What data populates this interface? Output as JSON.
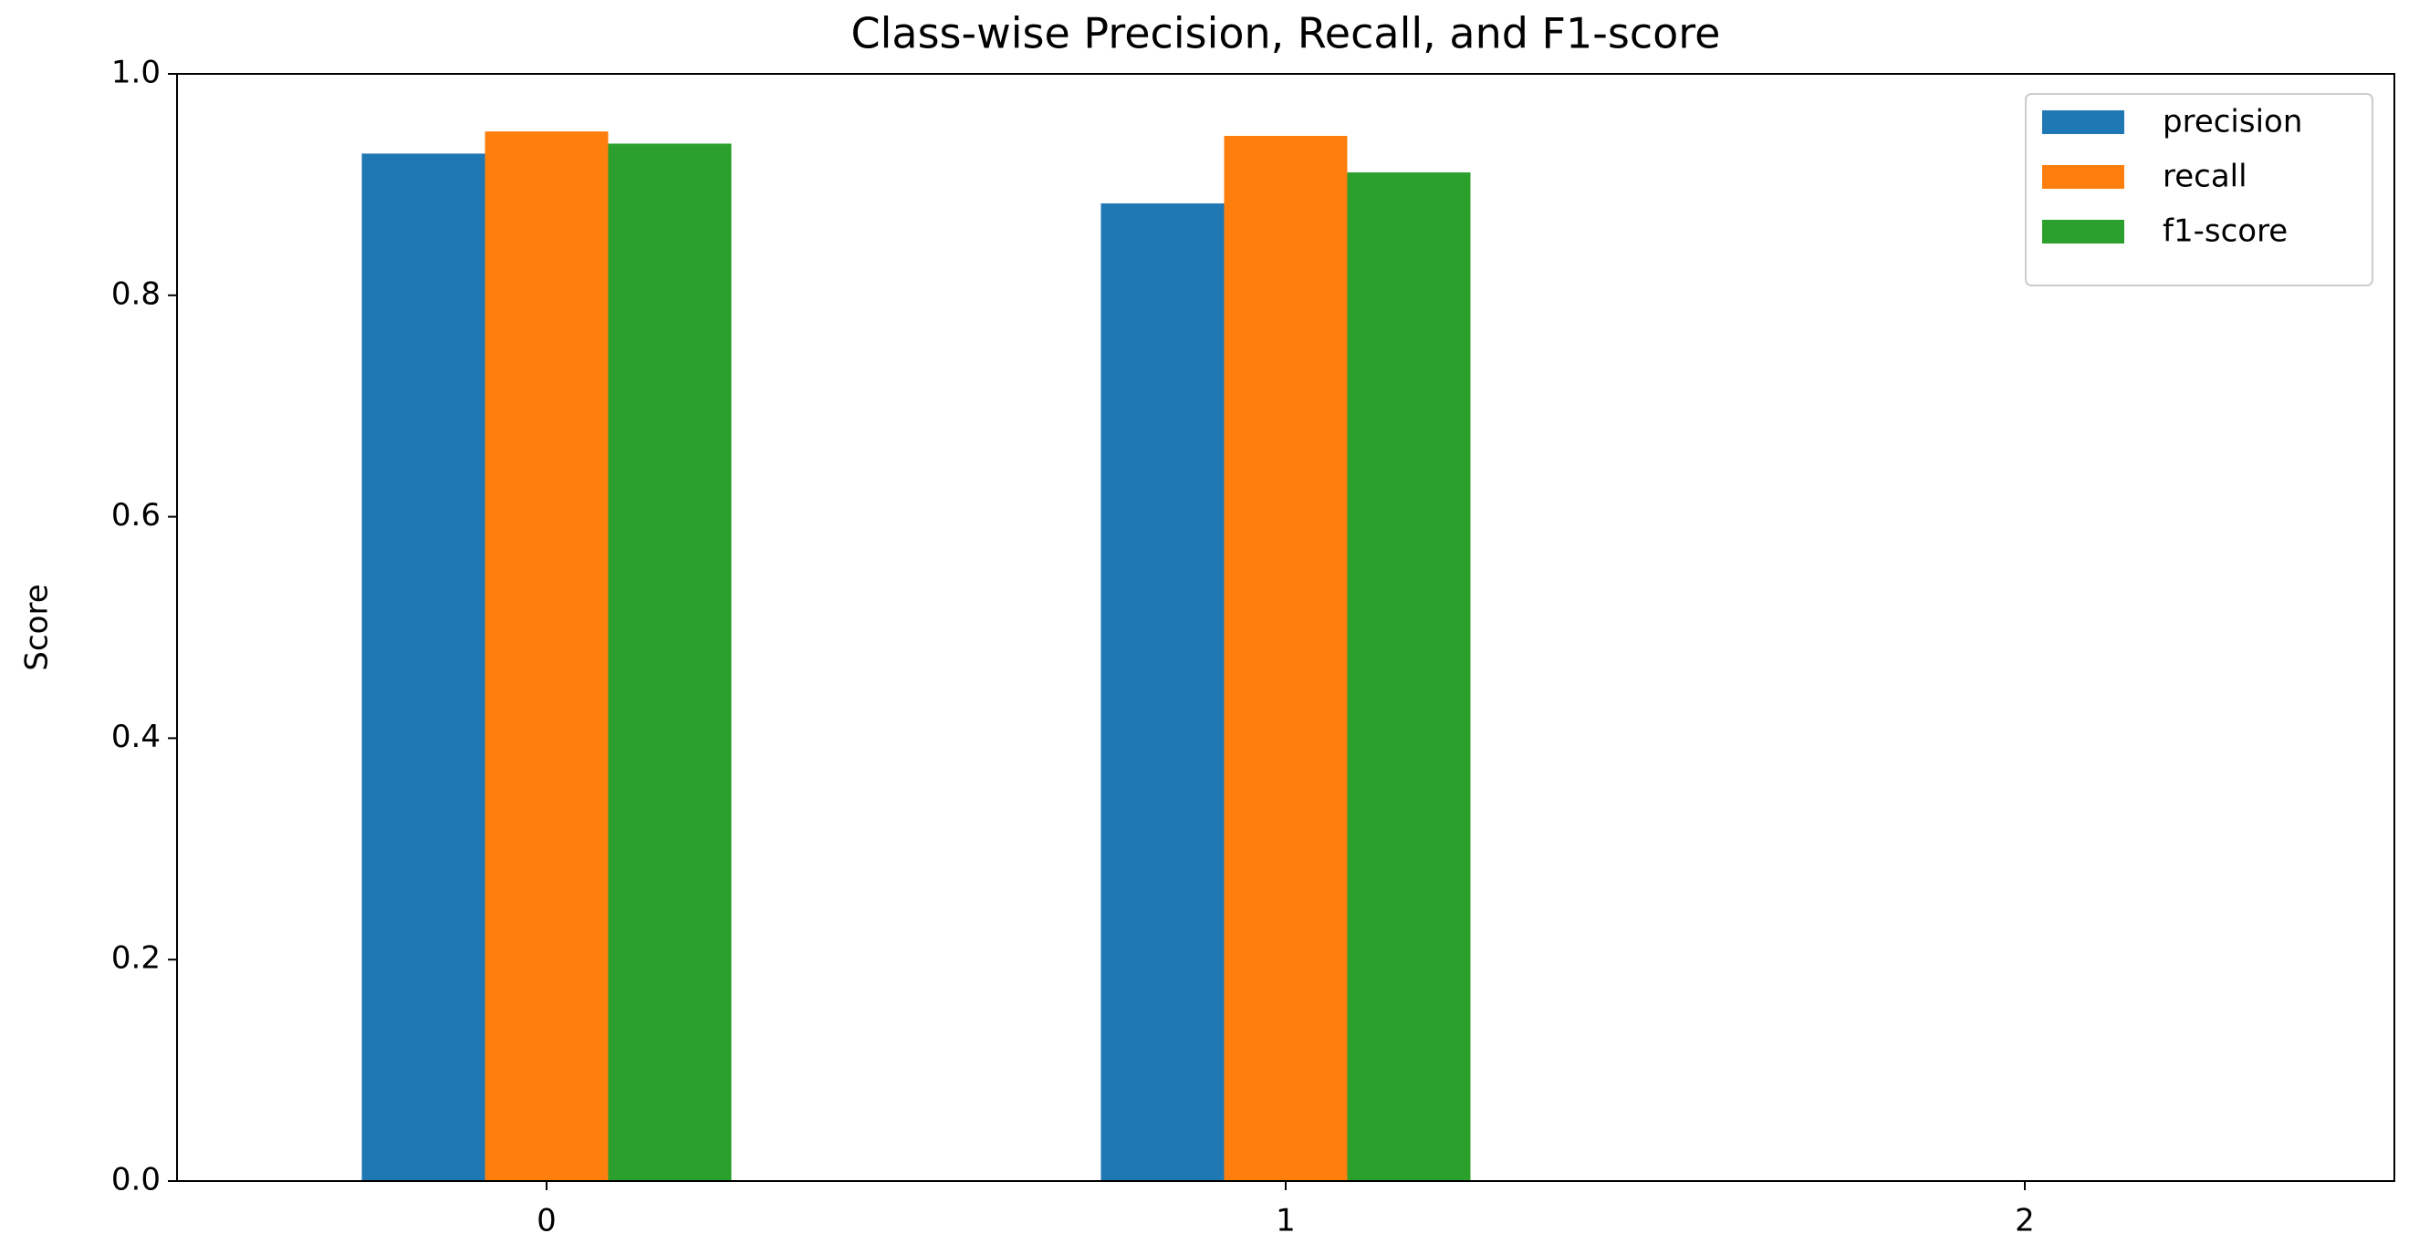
{
  "chart_data": {
    "type": "bar",
    "title": "Class-wise Precision, Recall, and F1-score",
    "y_label": "Score",
    "categories": [
      "0",
      "1",
      "2"
    ],
    "series": [
      {
        "name": "precision",
        "color": "#1f77b4",
        "values": [
          0.928,
          0.883,
          0
        ]
      },
      {
        "name": "recall",
        "color": "#ff7f0e",
        "values": [
          0.948,
          0.944,
          0
        ]
      },
      {
        "name": "f1-score",
        "color": "#2ca02c",
        "values": [
          0.937,
          0.911,
          0
        ]
      }
    ],
    "ylim": [
      0,
      1
    ],
    "yticks": [
      {
        "value": 0,
        "label": "0.0"
      },
      {
        "value": 0.2,
        "label": "0.2"
      },
      {
        "value": 0.4,
        "label": "0.4"
      },
      {
        "value": 0.6,
        "label": "0.6"
      },
      {
        "value": 0.8,
        "label": "0.8"
      },
      {
        "value": 1,
        "label": "1.0"
      }
    ],
    "legend": "upper right"
  }
}
